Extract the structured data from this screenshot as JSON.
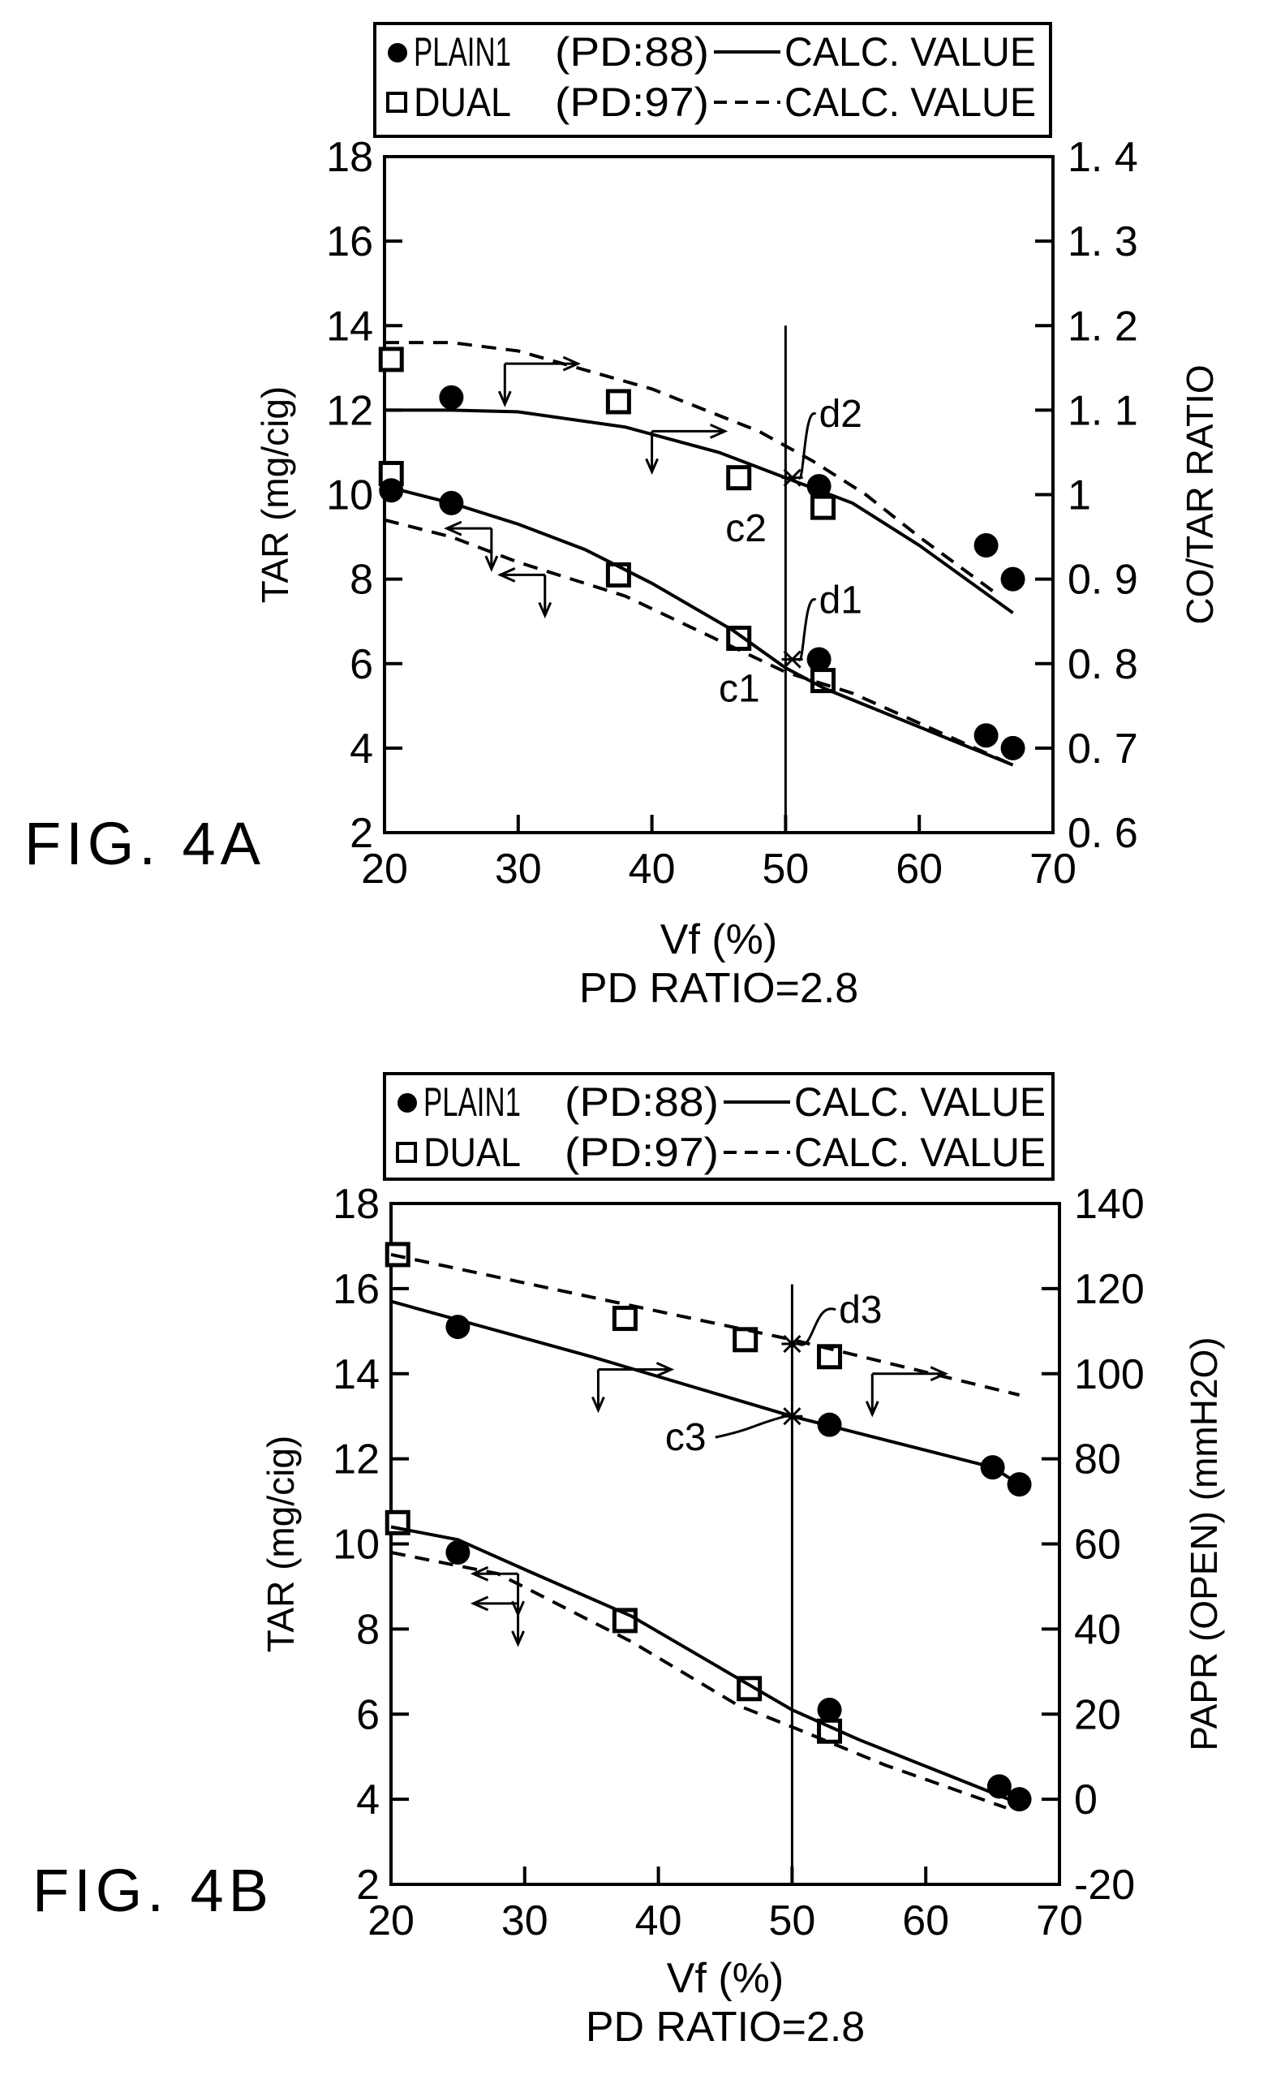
{
  "chart_data": [
    {
      "type": "line",
      "figure_label": "FIG. 4A",
      "legend": [
        {
          "marker": "filled-circle",
          "name": "PLAIN1",
          "pd": "(PD:88)",
          "line": "solid",
          "calc": "CALC. VALUE"
        },
        {
          "marker": "open-square",
          "name": "DUAL",
          "pd": "(PD:97)",
          "line": "dashed",
          "calc": "CALC. VALUE"
        }
      ],
      "xlabel": "Vf (%)",
      "subtitle": "PD RATIO=2.8",
      "ylabel": "TAR (mg/cig)",
      "ylabel_right": "CO/TAR RATIO",
      "xlim": [
        20,
        70
      ],
      "ylim": [
        2,
        18
      ],
      "ylim_right": [
        0.6,
        1.4
      ],
      "xticks": [
        "20",
        "30",
        "40",
        "50",
        "60",
        "70"
      ],
      "yticks": [
        "2",
        "4",
        "6",
        "8",
        "10",
        "12",
        "14",
        "16",
        "18"
      ],
      "yticks_right": [
        "0. 6",
        "0. 7",
        "0. 8",
        "0. 9",
        "1",
        "1. 1",
        "1. 2",
        "1. 3",
        "1. 4"
      ],
      "vline_x": 50,
      "vline_top": 14,
      "series": [
        {
          "name": "PLAIN1 TAR",
          "axis": "left",
          "marker": "circle",
          "x": [
            25,
            52.5,
            65,
            67
          ],
          "y": [
            9.8,
            6.1,
            4.3,
            4.0
          ]
        },
        {
          "name": "DUAL TAR",
          "axis": "left",
          "marker": "square",
          "x": [
            20.5,
            37.5,
            46.5,
            52.8
          ],
          "y": [
            10.5,
            8.1,
            6.6,
            5.6
          ]
        },
        {
          "name": "PLAIN1 CO/TAR",
          "axis": "right",
          "marker": "circle",
          "x": [
            20.5,
            25,
            52.5,
            65,
            67
          ],
          "y": [
            1.005,
            1.115,
            1.01,
            0.94,
            0.9
          ]
        },
        {
          "name": "DUAL CO/TAR",
          "axis": "right",
          "marker": "square",
          "x": [
            20.5,
            37.5,
            46.5,
            52.8
          ],
          "y": [
            1.16,
            1.11,
            1.02,
            0.985
          ]
        },
        {
          "name": "PLAIN1 TAR calc",
          "axis": "left",
          "line": "solid",
          "x": [
            20,
            25,
            30,
            35,
            40,
            46,
            50,
            53,
            60,
            67
          ],
          "y": [
            10.2,
            9.8,
            9.3,
            8.7,
            7.9,
            6.8,
            5.9,
            5.4,
            4.5,
            3.6
          ]
        },
        {
          "name": "DUAL TAR calc",
          "axis": "left",
          "line": "dashed",
          "x": [
            20,
            25,
            30,
            38,
            46,
            50,
            55,
            67
          ],
          "y": [
            9.4,
            9.0,
            8.4,
            7.6,
            6.4,
            5.8,
            5.3,
            3.6
          ]
        },
        {
          "name": "PLAIN1 CO/TAR calc",
          "axis": "right",
          "line": "solid",
          "x": [
            20,
            25,
            30,
            38,
            45,
            50,
            55,
            60,
            67
          ],
          "y": [
            1.1,
            1.1,
            1.098,
            1.08,
            1.05,
            1.02,
            0.99,
            0.94,
            0.86
          ]
        },
        {
          "name": "DUAL CO/TAR calc",
          "axis": "right",
          "line": "dashed",
          "x": [
            20,
            25,
            30,
            40,
            48,
            52,
            56,
            60,
            66
          ],
          "y": [
            1.18,
            1.18,
            1.17,
            1.125,
            1.075,
            1.04,
            1.0,
            0.95,
            0.88
          ]
        }
      ],
      "indicators": [
        {
          "x": 29,
          "y": 13.1,
          "dir": "down"
        },
        {
          "x": 29,
          "y": 13.1,
          "dir": "right"
        },
        {
          "x": 40,
          "y": 11.5,
          "dir": "down"
        },
        {
          "x": 40,
          "y": 11.5,
          "dir": "right"
        },
        {
          "x": 28,
          "y": 9.2,
          "dir": "down"
        },
        {
          "x": 28,
          "y": 9.2,
          "dir": "left"
        },
        {
          "x": 32,
          "y": 8.1,
          "dir": "down"
        },
        {
          "x": 32,
          "y": 8.1,
          "dir": "left"
        }
      ],
      "annotations": [
        {
          "text": "d2",
          "x": 52.5,
          "y": 11.6,
          "mark_x": 50.5,
          "mark_y": 10.4
        },
        {
          "text": "c2",
          "x": 45.5,
          "y": 8.9
        },
        {
          "text": "d1",
          "x": 52.5,
          "y": 7.2,
          "mark_x": 50.5,
          "mark_y": 6.1
        },
        {
          "text": "c1",
          "x": 45,
          "y": 5.1
        }
      ]
    },
    {
      "type": "line",
      "figure_label": "FIG. 4B",
      "legend": [
        {
          "marker": "filled-circle",
          "name": "PLAIN1",
          "pd": "(PD:88)",
          "line": "solid",
          "calc": "CALC. VALUE"
        },
        {
          "marker": "open-square",
          "name": "DUAL",
          "pd": "(PD:97)",
          "line": "dashed",
          "calc": "CALC. VALUE"
        }
      ],
      "xlabel": "Vf (%)",
      "subtitle": "PD RATIO=2.8",
      "ylabel": "TAR (mg/cig)",
      "ylabel_right": "PAPR (OPEN) (mmH2O)",
      "xlim": [
        20,
        70
      ],
      "ylim": [
        2,
        18
      ],
      "ylim_right": [
        -20,
        140
      ],
      "xticks": [
        "20",
        "30",
        "40",
        "50",
        "60",
        "70"
      ],
      "yticks": [
        "2",
        "4",
        "6",
        "8",
        "10",
        "12",
        "14",
        "16",
        "18"
      ],
      "yticks_right": [
        "-20",
        "0",
        "20",
        "40",
        "60",
        "80",
        "100",
        "120",
        "140"
      ],
      "vline_x": 50,
      "vline_top": 16.1,
      "series": [
        {
          "name": "PLAIN1 TAR",
          "axis": "left",
          "marker": "circle",
          "x": [
            25,
            52.8,
            65.5,
            67
          ],
          "y": [
            9.8,
            6.1,
            4.3,
            4.0
          ]
        },
        {
          "name": "DUAL TAR",
          "axis": "left",
          "marker": "square",
          "x": [
            20.5,
            37.5,
            46.8,
            52.8
          ],
          "y": [
            10.5,
            8.2,
            6.6,
            5.6
          ]
        },
        {
          "name": "PLAIN1 PAPR",
          "axis": "right",
          "marker": "circle",
          "x": [
            25,
            52.8,
            65,
            67
          ],
          "y": [
            111,
            88,
            78,
            74
          ]
        },
        {
          "name": "DUAL PAPR",
          "axis": "right",
          "marker": "square",
          "x": [
            20.5,
            37.5,
            46.5,
            52.8
          ],
          "y": [
            128,
            113,
            108,
            104
          ]
        },
        {
          "name": "PLAIN1 TAR calc",
          "axis": "left",
          "line": "solid",
          "x": [
            20,
            25,
            30,
            38,
            44,
            50,
            55,
            67
          ],
          "y": [
            10.4,
            10.1,
            9.4,
            8.3,
            7.2,
            6.1,
            5.4,
            3.9
          ]
        },
        {
          "name": "DUAL TAR calc",
          "axis": "left",
          "line": "dashed",
          "x": [
            20,
            28,
            38,
            46,
            50,
            57,
            66
          ],
          "y": [
            9.8,
            9.3,
            7.7,
            6.2,
            5.7,
            4.8,
            3.8
          ]
        },
        {
          "name": "PLAIN1 PAPR calc",
          "axis": "right",
          "line": "solid",
          "x": [
            20,
            35,
            50,
            65,
            67
          ],
          "y": [
            117,
            104,
            90,
            78,
            74
          ]
        },
        {
          "name": "DUAL PAPR calc",
          "axis": "right",
          "line": "dashed",
          "x": [
            20,
            35,
            50,
            67
          ],
          "y": [
            128,
            118,
            108,
            95
          ]
        }
      ],
      "indicators": [
        {
          "x": 35.5,
          "y": 14.1,
          "dir": "down"
        },
        {
          "x": 35.5,
          "y": 14.1,
          "dir": "right"
        },
        {
          "x": 56,
          "y": 14.0,
          "dir": "down"
        },
        {
          "x": 56,
          "y": 14.0,
          "dir": "right"
        },
        {
          "x": 29.5,
          "y": 9.3,
          "dir": "down"
        },
        {
          "x": 29.5,
          "y": 9.3,
          "dir": "left"
        },
        {
          "x": 29.5,
          "y": 8.6,
          "dir": "down"
        },
        {
          "x": 29.5,
          "y": 8.6,
          "dir": "left"
        }
      ],
      "annotations": [
        {
          "text": "d3",
          "x": 53.5,
          "y": 15.2,
          "mark_x": 50,
          "mark_y": 14.7
        },
        {
          "text": "c3",
          "x": 40.5,
          "y": 12.2,
          "mark_x": 50,
          "mark_y": 13.0
        }
      ]
    }
  ]
}
